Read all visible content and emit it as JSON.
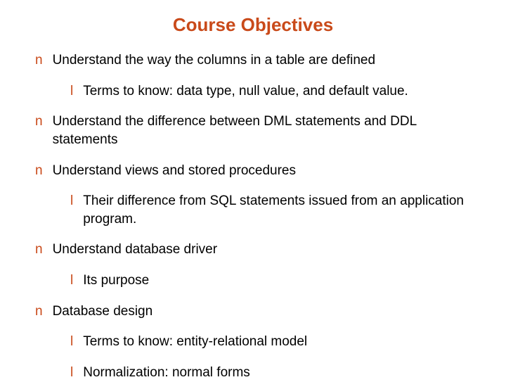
{
  "title": "Course Objectives",
  "colors": {
    "accent": "#c94a1a",
    "text": "#000000",
    "background": "#ffffff"
  },
  "typography": {
    "title_fontsize": 26,
    "body_fontsize": 19,
    "font_family": "Arial"
  },
  "bullets": {
    "main": "n",
    "sub": "l"
  },
  "items": [
    {
      "text": "Understand the way the columns in a table are defined",
      "subs": [
        {
          "text": "Terms to know: data type, null value, and default value."
        }
      ]
    },
    {
      "text": "Understand the difference between DML statements and DDL statements",
      "subs": []
    },
    {
      "text": "Understand views and stored procedures",
      "subs": [
        {
          "text": "Their difference from SQL statements issued from an application program."
        }
      ]
    },
    {
      "text": "Understand database driver",
      "subs": [
        {
          "text": "Its purpose"
        }
      ]
    },
    {
      "text": "Database design",
      "subs": [
        {
          "text": "Terms to know: entity-relational model"
        },
        {
          "text": "Normalization: normal forms"
        }
      ]
    }
  ]
}
